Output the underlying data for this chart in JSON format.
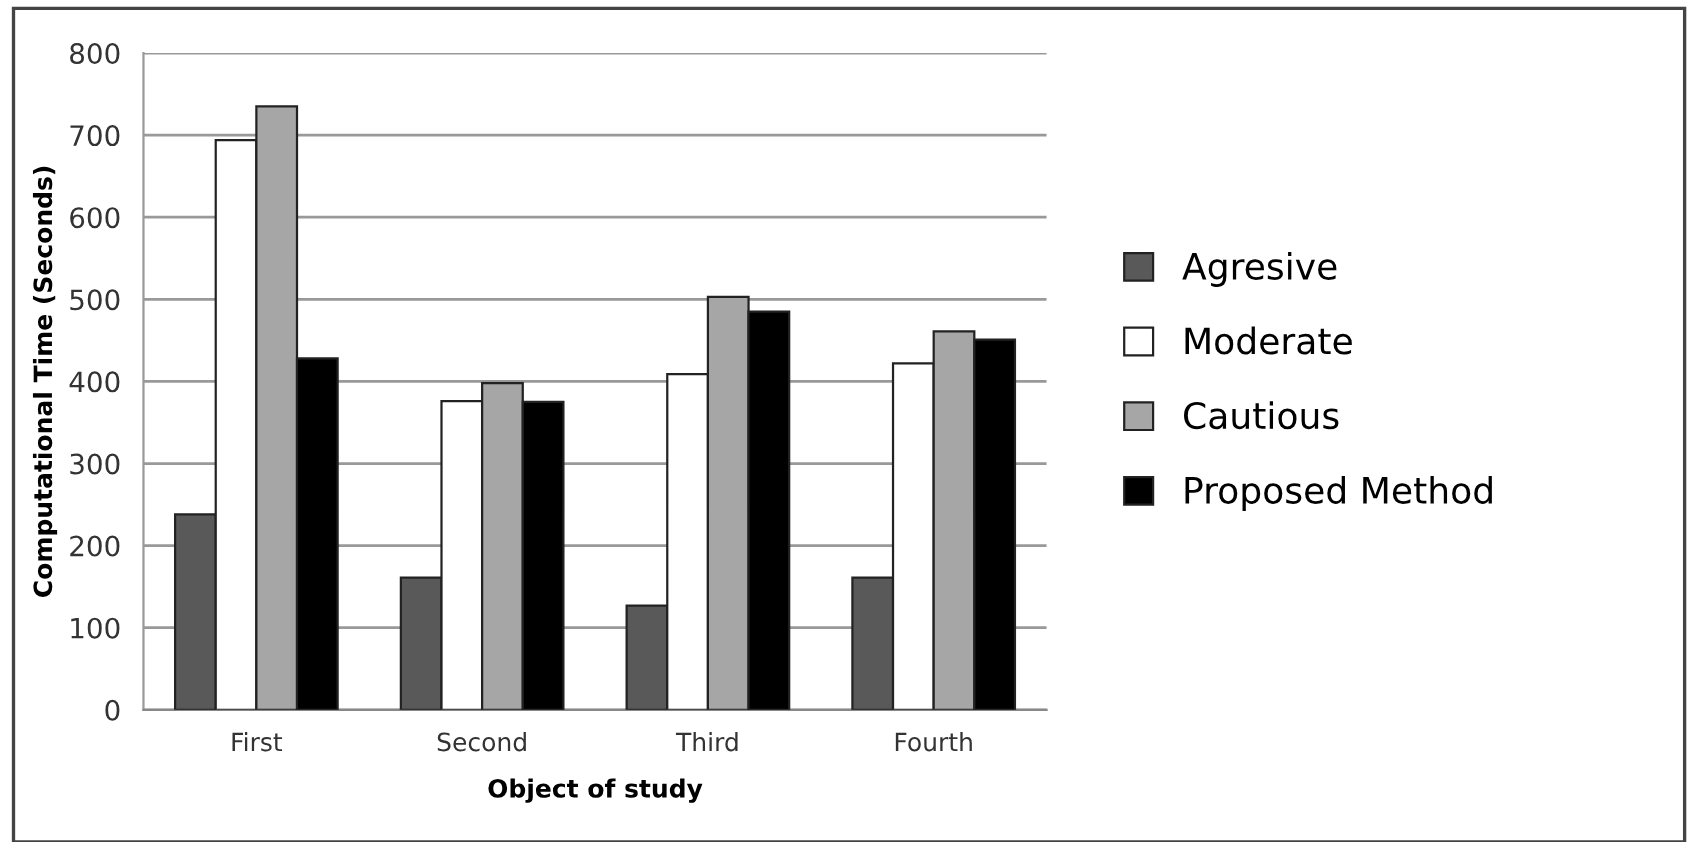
{
  "chart_data": {
    "type": "bar",
    "xlabel": "Object of study",
    "ylabel": "Computational Time (Seconds)",
    "categories": [
      "First",
      "Second",
      "Third",
      "Fourth"
    ],
    "series": [
      {
        "name": "Agresive",
        "color": "#595959",
        "values": [
          238,
          161,
          127,
          161
        ]
      },
      {
        "name": "Moderate",
        "color": "#ffffff",
        "values": [
          694,
          376,
          409,
          422
        ]
      },
      {
        "name": "Cautious",
        "color": "#a6a6a6",
        "values": [
          735,
          398,
          503,
          461
        ]
      },
      {
        "name": "Proposed Method",
        "color": "#000000",
        "values": [
          428,
          375,
          485,
          451
        ]
      }
    ],
    "ylim": [
      0,
      800
    ],
    "yticks": [
      0,
      100,
      200,
      300,
      400,
      500,
      600,
      700,
      800
    ],
    "grid": "y",
    "legend": "right"
  }
}
